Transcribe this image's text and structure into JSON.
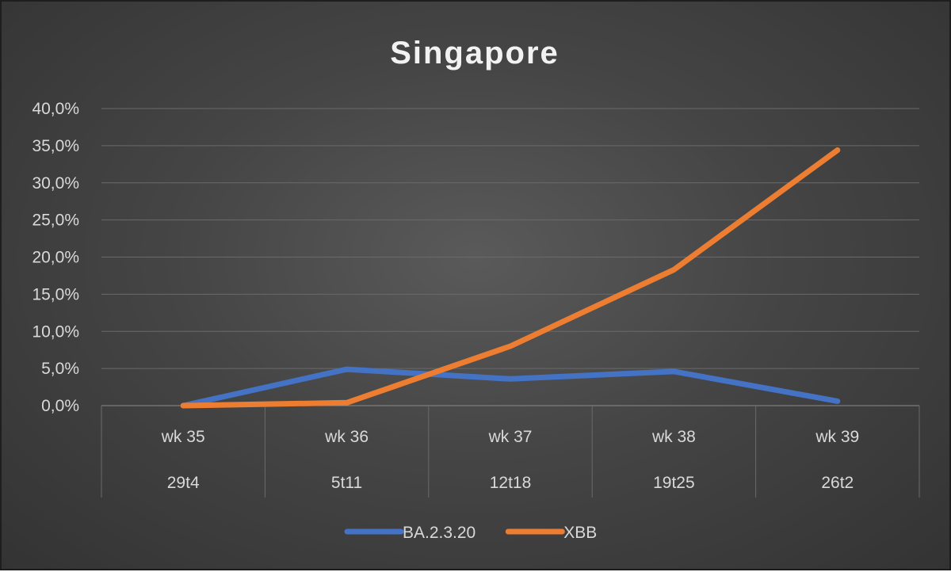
{
  "chart_data": {
    "type": "line",
    "title": "Singapore",
    "xlabel": "",
    "ylabel": "",
    "x_weeks": [
      "wk 35",
      "wk 36",
      "wk 37",
      "wk 38",
      "wk 39"
    ],
    "x_ranges": [
      "29t4",
      "5t11",
      "12t18",
      "19t25",
      "26t2"
    ],
    "y_ticks": [
      "0,0%",
      "5,0%",
      "10,0%",
      "15,0%",
      "20,0%",
      "25,0%",
      "30,0%",
      "35,0%",
      "40,0%"
    ],
    "ylim": [
      0,
      40
    ],
    "grid": true,
    "legend_position": "bottom",
    "series": [
      {
        "name": "BA.2.3.20",
        "color": "#4472C4",
        "values": [
          0.0,
          4.9,
          3.6,
          4.6,
          0.6
        ]
      },
      {
        "name": "XBB",
        "color": "#ED7D31",
        "values": [
          0.0,
          0.4,
          8.0,
          18.3,
          34.4
        ]
      }
    ]
  }
}
